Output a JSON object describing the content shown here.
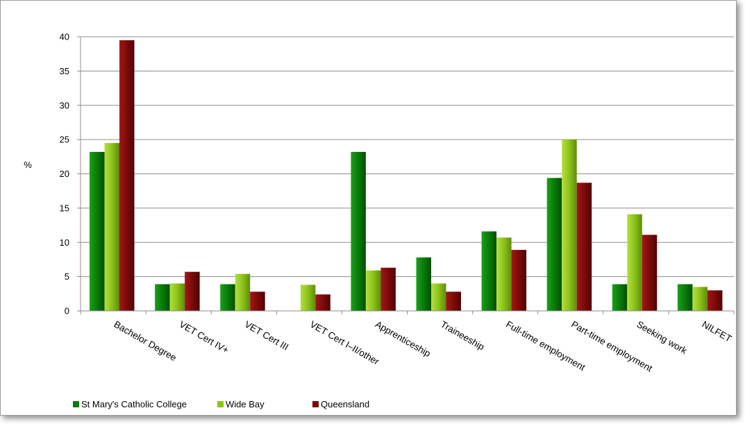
{
  "chart_data": {
    "type": "bar",
    "title": "",
    "xlabel": "",
    "ylabel": "%",
    "ylim": [
      0,
      40
    ],
    "yticks": [
      0,
      5,
      10,
      15,
      20,
      25,
      30,
      35,
      40
    ],
    "grid": true,
    "legend_position": "bottom-left",
    "categories": [
      "Bachelor Degree",
      "VET Cert IV+",
      "VET Cert III",
      "VET Cert I–II/other",
      "Apprenticeship",
      "Traineeship",
      "Full-time employment",
      "Part-time employment",
      "Seeking work",
      "NILFET"
    ],
    "series": [
      {
        "name": "St Mary's Catholic College",
        "color": "#0a7a0a",
        "values": [
          23.2,
          3.9,
          3.9,
          0,
          23.2,
          7.8,
          11.6,
          19.4,
          3.9,
          3.9
        ]
      },
      {
        "name": "Wide Bay",
        "color": "#8cc21a",
        "values": [
          24.5,
          4.0,
          5.4,
          3.8,
          5.9,
          4.0,
          10.7,
          25.0,
          14.1,
          3.5
        ]
      },
      {
        "name": "Queensland",
        "color": "#7d0a0a",
        "values": [
          39.5,
          5.7,
          2.8,
          2.4,
          6.3,
          2.8,
          8.9,
          18.7,
          11.1,
          3.0
        ]
      }
    ]
  }
}
